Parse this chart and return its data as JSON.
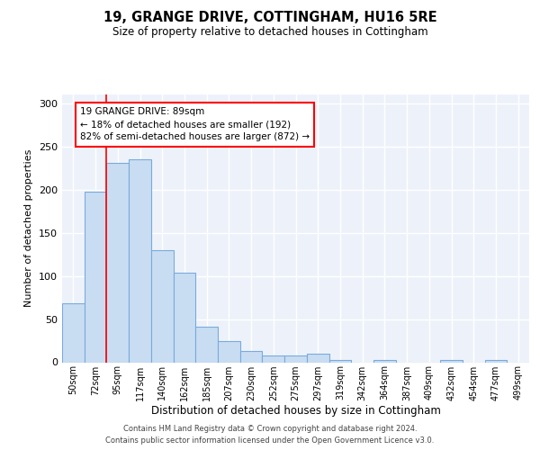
{
  "title": "19, GRANGE DRIVE, COTTINGHAM, HU16 5RE",
  "subtitle": "Size of property relative to detached houses in Cottingham",
  "xlabel": "Distribution of detached houses by size in Cottingham",
  "ylabel": "Number of detached properties",
  "categories": [
    "50sqm",
    "72sqm",
    "95sqm",
    "117sqm",
    "140sqm",
    "162sqm",
    "185sqm",
    "207sqm",
    "230sqm",
    "252sqm",
    "275sqm",
    "297sqm",
    "319sqm",
    "342sqm",
    "364sqm",
    "387sqm",
    "409sqm",
    "432sqm",
    "454sqm",
    "477sqm",
    "499sqm"
  ],
  "values": [
    68,
    197,
    231,
    235,
    130,
    104,
    41,
    24,
    13,
    8,
    8,
    10,
    3,
    0,
    3,
    0,
    0,
    3,
    0,
    3,
    0
  ],
  "bar_color": "#c9ddf2",
  "bar_edge_color": "#7aaadc",
  "background_color": "#edf2fa",
  "grid_color": "#ffffff",
  "red_line_index": 2,
  "annotation_text": "19 GRANGE DRIVE: 89sqm\n← 18% of detached houses are smaller (192)\n82% of semi-detached houses are larger (872) →",
  "ylim": [
    0,
    310
  ],
  "yticks": [
    0,
    50,
    100,
    150,
    200,
    250,
    300
  ],
  "footer_line1": "Contains HM Land Registry data © Crown copyright and database right 2024.",
  "footer_line2": "Contains public sector information licensed under the Open Government Licence v3.0."
}
